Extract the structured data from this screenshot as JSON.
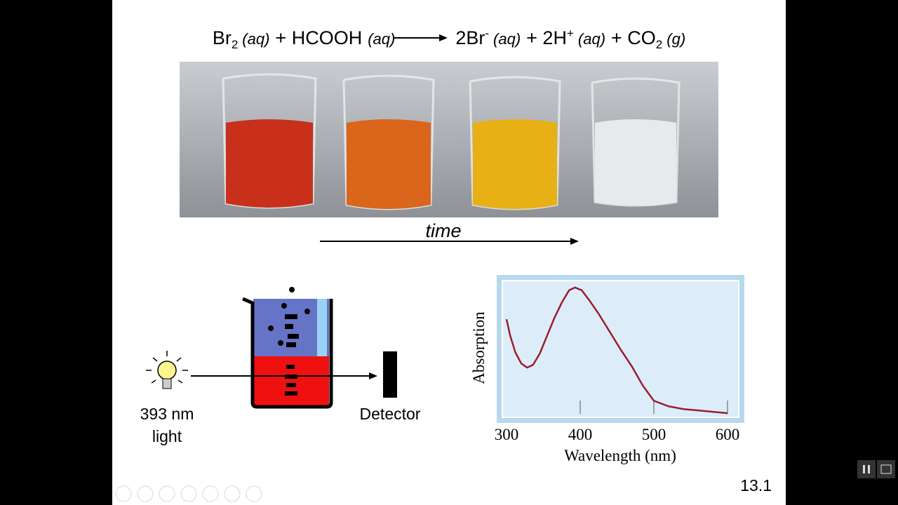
{
  "equation": [
    "Br",
    "2",
    "(aq)",
    "+ HCOOH",
    "(aq)",
    "2Br",
    "-",
    "(aq)",
    "+ 2H",
    "+",
    "(aq)",
    "+ CO",
    "2",
    "(g)"
  ],
  "time_label": "time",
  "light_label": [
    "393 nm",
    "light"
  ],
  "detector_label": "Detector",
  "slide_number": "13.1",
  "chart_data": {
    "type": "line",
    "xlabel": "Wavelength (nm)",
    "ylabel": "Absorption",
    "xlim": [
      300,
      600
    ],
    "xticks": [
      300,
      400,
      500,
      600
    ],
    "ylim": [
      0,
      1
    ],
    "x": [
      300,
      305,
      312,
      320,
      328,
      336,
      345,
      355,
      365,
      375,
      385,
      393,
      402,
      412,
      425,
      440,
      455,
      470,
      485,
      500,
      520,
      540,
      560,
      580,
      600
    ],
    "values": [
      0.72,
      0.6,
      0.48,
      0.4,
      0.37,
      0.39,
      0.47,
      0.6,
      0.73,
      0.84,
      0.93,
      0.95,
      0.93,
      0.86,
      0.76,
      0.63,
      0.5,
      0.38,
      0.24,
      0.13,
      0.09,
      0.07,
      0.06,
      0.05,
      0.04
    ],
    "color": "#9b1c2c"
  }
}
